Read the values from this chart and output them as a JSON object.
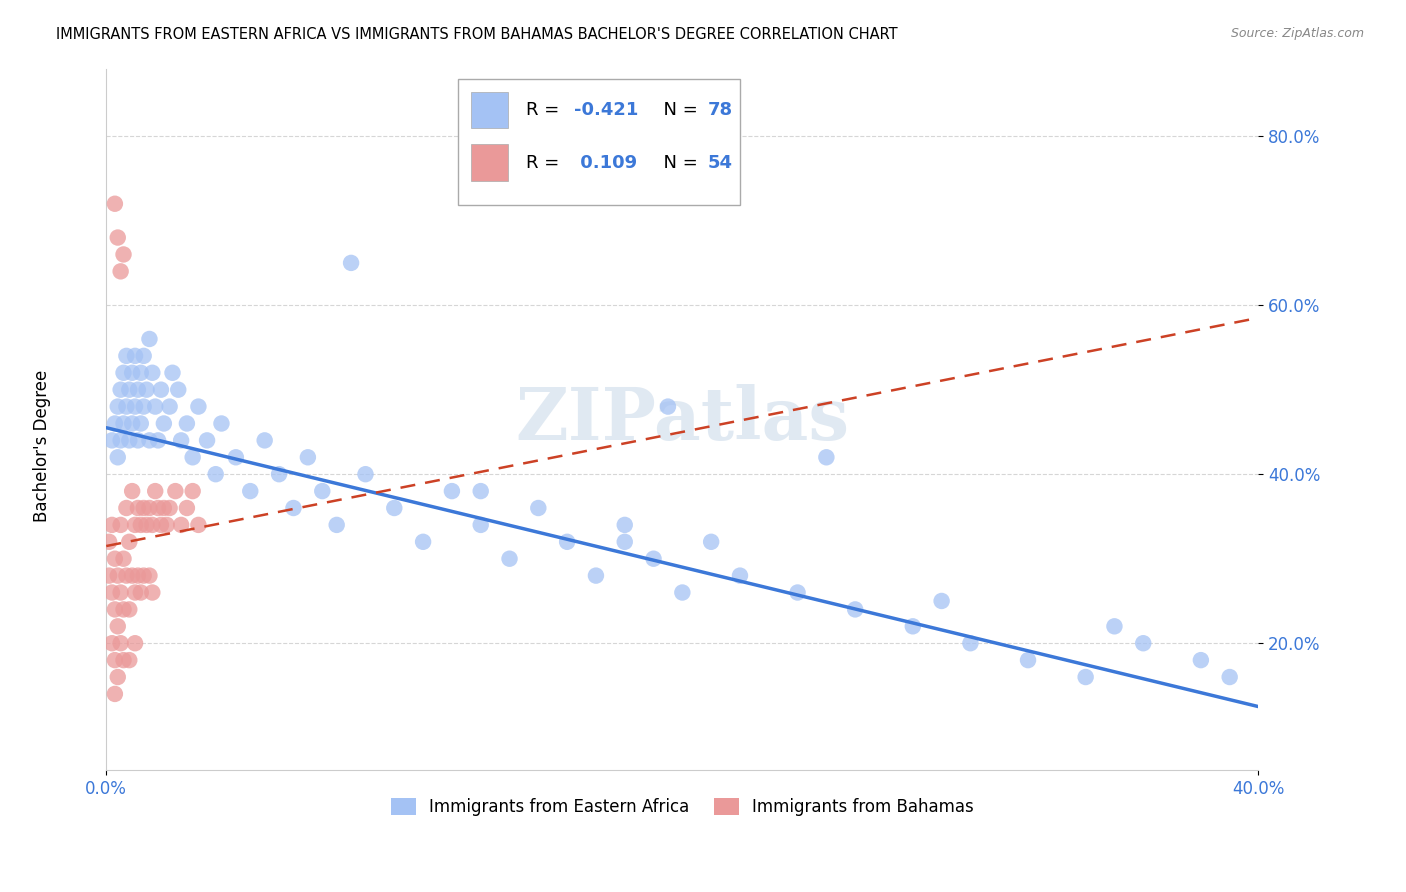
{
  "title": "IMMIGRANTS FROM EASTERN AFRICA VS IMMIGRANTS FROM BAHAMAS BACHELOR'S DEGREE CORRELATION CHART",
  "source": "Source: ZipAtlas.com",
  "ylabel": "Bachelor's Degree",
  "legend_label_blue": "Immigrants from Eastern Africa",
  "legend_label_pink": "Immigrants from Bahamas",
  "R_blue": -0.421,
  "N_blue": 78,
  "R_pink": 0.109,
  "N_pink": 54,
  "color_blue": "#a4c2f4",
  "color_pink": "#ea9999",
  "color_blue_line": "#3c78d8",
  "color_pink_line": "#cc4125",
  "xlim": [
    0.0,
    0.4
  ],
  "ylim": [
    0.05,
    0.88
  ],
  "xtick_positions": [
    0.0,
    0.4
  ],
  "xtick_labels": [
    "0.0%",
    "40.0%"
  ],
  "ytick_positions": [
    0.2,
    0.4,
    0.6,
    0.8
  ],
  "ytick_labels": [
    "20.0%",
    "40.0%",
    "60.0%",
    "80.0%"
  ],
  "watermark": "ZIPatlas",
  "blue_scatter_x": [
    0.002,
    0.003,
    0.004,
    0.004,
    0.005,
    0.005,
    0.006,
    0.006,
    0.007,
    0.007,
    0.008,
    0.008,
    0.009,
    0.009,
    0.01,
    0.01,
    0.011,
    0.011,
    0.012,
    0.012,
    0.013,
    0.013,
    0.014,
    0.015,
    0.015,
    0.016,
    0.017,
    0.018,
    0.019,
    0.02,
    0.022,
    0.023,
    0.025,
    0.026,
    0.028,
    0.03,
    0.032,
    0.035,
    0.038,
    0.04,
    0.045,
    0.05,
    0.055,
    0.06,
    0.065,
    0.07,
    0.075,
    0.08,
    0.09,
    0.1,
    0.11,
    0.12,
    0.13,
    0.14,
    0.15,
    0.16,
    0.17,
    0.18,
    0.19,
    0.2,
    0.21,
    0.22,
    0.24,
    0.26,
    0.28,
    0.3,
    0.32,
    0.34,
    0.35,
    0.36,
    0.38,
    0.39,
    0.195,
    0.085,
    0.13,
    0.25,
    0.29,
    0.18
  ],
  "blue_scatter_y": [
    0.44,
    0.46,
    0.48,
    0.42,
    0.5,
    0.44,
    0.52,
    0.46,
    0.54,
    0.48,
    0.5,
    0.44,
    0.52,
    0.46,
    0.54,
    0.48,
    0.5,
    0.44,
    0.52,
    0.46,
    0.54,
    0.48,
    0.5,
    0.56,
    0.44,
    0.52,
    0.48,
    0.44,
    0.5,
    0.46,
    0.48,
    0.52,
    0.5,
    0.44,
    0.46,
    0.42,
    0.48,
    0.44,
    0.4,
    0.46,
    0.42,
    0.38,
    0.44,
    0.4,
    0.36,
    0.42,
    0.38,
    0.34,
    0.4,
    0.36,
    0.32,
    0.38,
    0.34,
    0.3,
    0.36,
    0.32,
    0.28,
    0.34,
    0.3,
    0.26,
    0.32,
    0.28,
    0.26,
    0.24,
    0.22,
    0.2,
    0.18,
    0.16,
    0.22,
    0.2,
    0.18,
    0.16,
    0.48,
    0.65,
    0.38,
    0.42,
    0.25,
    0.32
  ],
  "pink_scatter_x": [
    0.001,
    0.001,
    0.002,
    0.002,
    0.002,
    0.003,
    0.003,
    0.003,
    0.003,
    0.004,
    0.004,
    0.004,
    0.005,
    0.005,
    0.005,
    0.006,
    0.006,
    0.006,
    0.007,
    0.007,
    0.008,
    0.008,
    0.008,
    0.009,
    0.009,
    0.01,
    0.01,
    0.01,
    0.011,
    0.011,
    0.012,
    0.012,
    0.013,
    0.013,
    0.014,
    0.015,
    0.015,
    0.016,
    0.016,
    0.017,
    0.018,
    0.019,
    0.02,
    0.021,
    0.022,
    0.024,
    0.026,
    0.028,
    0.03,
    0.032,
    0.003,
    0.004,
    0.005,
    0.006
  ],
  "pink_scatter_y": [
    0.32,
    0.28,
    0.34,
    0.26,
    0.2,
    0.3,
    0.24,
    0.18,
    0.14,
    0.28,
    0.22,
    0.16,
    0.34,
    0.26,
    0.2,
    0.3,
    0.24,
    0.18,
    0.36,
    0.28,
    0.32,
    0.24,
    0.18,
    0.38,
    0.28,
    0.34,
    0.26,
    0.2,
    0.36,
    0.28,
    0.34,
    0.26,
    0.36,
    0.28,
    0.34,
    0.36,
    0.28,
    0.34,
    0.26,
    0.38,
    0.36,
    0.34,
    0.36,
    0.34,
    0.36,
    0.38,
    0.34,
    0.36,
    0.38,
    0.34,
    0.72,
    0.68,
    0.64,
    0.66
  ],
  "blue_line_x": [
    0.0,
    0.4
  ],
  "blue_line_y": [
    0.455,
    0.125
  ],
  "pink_line_x": [
    0.0,
    0.4
  ],
  "pink_line_y": [
    0.315,
    0.585
  ]
}
